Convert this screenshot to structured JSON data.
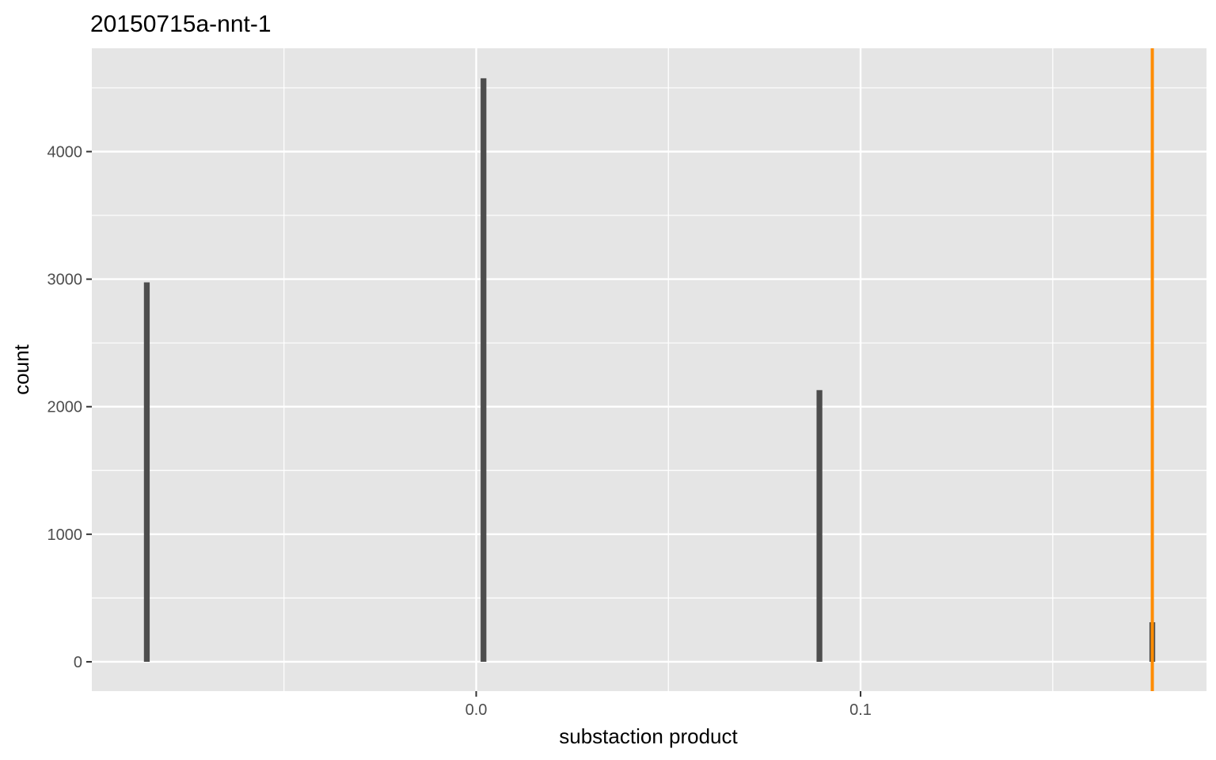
{
  "chart_data": {
    "type": "bar",
    "title": "20150715a-nnt-1",
    "xlabel": "substaction product",
    "ylabel": "count",
    "xlim": [
      -0.1,
      0.19
    ],
    "ylim": [
      -230,
      4810
    ],
    "x_ticks": [
      0.0,
      0.1
    ],
    "x_tick_labels": [
      "0.0",
      "0.1"
    ],
    "x_minor_ticks": [
      -0.05,
      0.05,
      0.15
    ],
    "y_ticks": [
      0,
      1000,
      2000,
      3000,
      4000
    ],
    "y_tick_labels": [
      "0",
      "1000",
      "2000",
      "3000",
      "4000"
    ],
    "y_minor_ticks": [
      500,
      1500,
      2500,
      3500,
      4500
    ],
    "grid": true,
    "bars": [
      {
        "x": -0.0857,
        "count": 2975
      },
      {
        "x": 0.0019,
        "count": 4575
      },
      {
        "x": 0.0893,
        "count": 2130
      },
      {
        "x": 0.1759,
        "count": 310
      }
    ],
    "bar_width": 0.0015,
    "bar_color": "#4d4d4d",
    "reference_line": {
      "x": 0.1759,
      "color": "#ff8c00"
    }
  }
}
